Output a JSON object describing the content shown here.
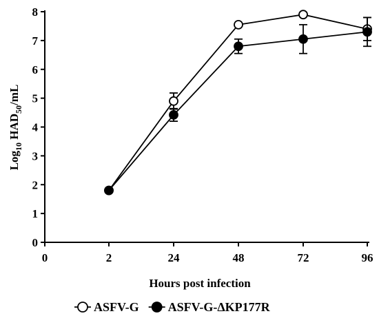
{
  "chart_data": {
    "type": "line",
    "xlabel": "Hours post infection",
    "ylabel_main": "Log",
    "ylabel_sub1": "10",
    "ylabel_mid": " HAD",
    "ylabel_sub2": "50",
    "ylabel_end": "/mL",
    "x_tick_labels": [
      "0",
      "2",
      "24",
      "48",
      "72",
      "96"
    ],
    "y_ticks": [
      0,
      1,
      2,
      3,
      4,
      5,
      6,
      7,
      8
    ],
    "ylim": [
      0,
      8
    ],
    "grid": false,
    "legend_position": "bottom",
    "series": [
      {
        "name": "ASFV-G",
        "marker": "open-circle",
        "color": "#000000",
        "points": [
          {
            "x": "2",
            "y": 1.8,
            "err": 0
          },
          {
            "x": "24",
            "y": 4.9,
            "err": 0.28
          },
          {
            "x": "48",
            "y": 7.55,
            "err": 0
          },
          {
            "x": "72",
            "y": 7.9,
            "err": 0
          },
          {
            "x": "96",
            "y": 7.4,
            "err": 0.4
          }
        ]
      },
      {
        "name": "ASFV-G-ΔKP177R",
        "marker": "filled-circle",
        "color": "#000000",
        "points": [
          {
            "x": "2",
            "y": 1.8,
            "err": 0
          },
          {
            "x": "24",
            "y": 4.42,
            "err": 0.22
          },
          {
            "x": "48",
            "y": 6.8,
            "err": 0.25
          },
          {
            "x": "72",
            "y": 7.05,
            "err": 0.5
          },
          {
            "x": "96",
            "y": 7.3,
            "err": 0.5
          }
        ]
      }
    ]
  }
}
